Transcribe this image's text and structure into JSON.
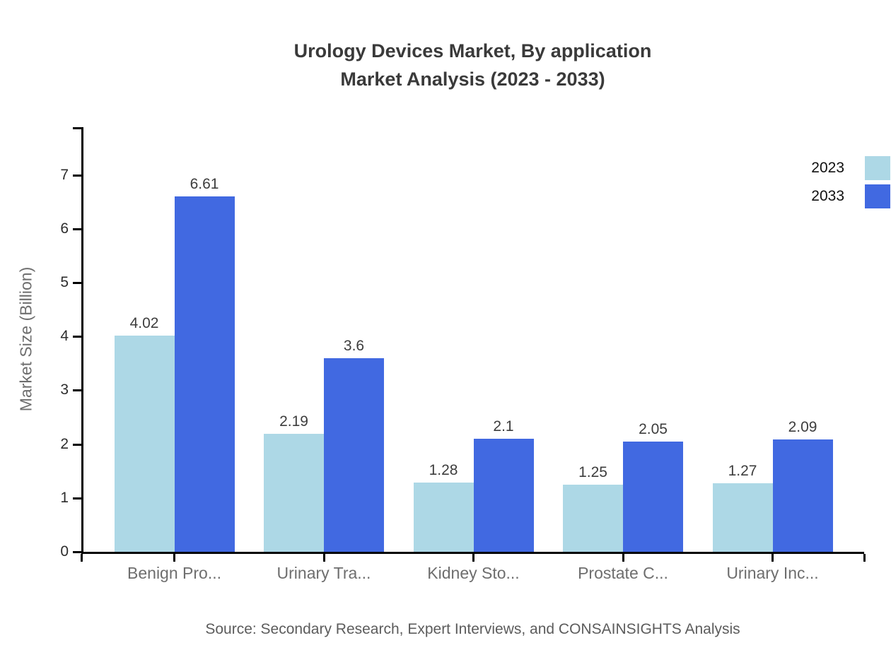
{
  "title": {
    "line1": "Urology Devices Market, By application",
    "line2": "Market Analysis (2023 - 2033)"
  },
  "source": "Source: Secondary Research, Expert Interviews, and CONSAINSIGHTS Analysis",
  "chart_data": {
    "type": "bar",
    "title": "Urology Devices Market, By application Market Analysis (2023 - 2033)",
    "xlabel": "",
    "ylabel": "Market Size (Billion)",
    "categories": [
      "Benign Pro...",
      "Urinary Tra...",
      "Kidney Sto...",
      "Prostate C...",
      "Urinary Inc..."
    ],
    "series": [
      {
        "name": "2023",
        "color": "#ADD8E6",
        "values": [
          4.02,
          2.19,
          1.28,
          1.25,
          1.27
        ]
      },
      {
        "name": "2033",
        "color": "#4169E1",
        "values": [
          6.61,
          3.6,
          2.1,
          2.05,
          2.09
        ]
      }
    ],
    "yticks": [
      0,
      1,
      2,
      3,
      4,
      5,
      6,
      7
    ],
    "ylim": [
      0,
      7.89
    ],
    "grid": false,
    "value_labels": true,
    "legend_position": "top-right",
    "axis_color": "#000000",
    "background": "#ffffff"
  }
}
